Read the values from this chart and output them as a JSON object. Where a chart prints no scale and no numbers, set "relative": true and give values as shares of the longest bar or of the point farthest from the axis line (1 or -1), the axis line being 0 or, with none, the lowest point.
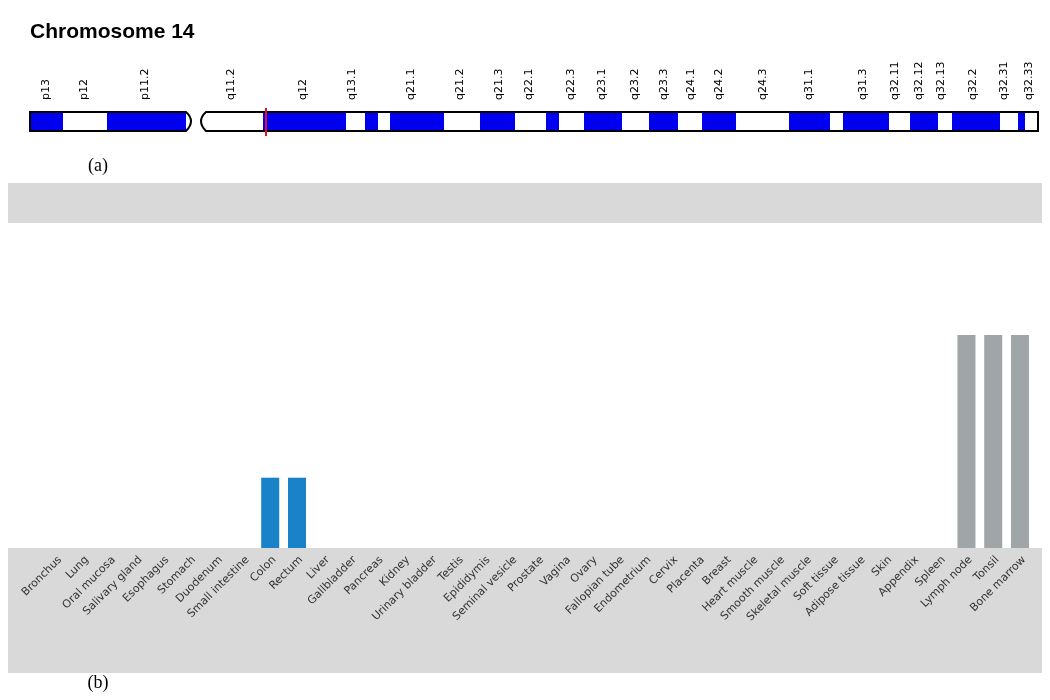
{
  "chart_data": [
    {
      "type": "other",
      "title": "Chromosome 14",
      "categories": [
        "p13",
        "p12",
        "p11.2",
        "q11.2",
        "q12",
        "q13.1",
        "q21.1",
        "q21.2",
        "q21.3",
        "q22.1",
        "q22.3",
        "q23.1",
        "q23.2",
        "q23.3",
        "q24.1",
        "q24.2",
        "q24.3",
        "q31.1",
        "q31.3",
        "q32.11",
        "q32.12",
        "q32.13",
        "q32.2",
        "q32.31",
        "q32.33"
      ],
      "annotations": [
        "(a)"
      ]
    },
    {
      "type": "bar",
      "relative": true,
      "categories": [
        "Bronchus",
        "Lung",
        "Oral mucosa",
        "Salivary gland",
        "Esophagus",
        "Stomach",
        "Duodenum",
        "Small intestine",
        "Colon",
        "Rectum",
        "Liver",
        "Gallbladder",
        "Pancreas",
        "Kidney",
        "Urinary bladder",
        "Testis",
        "Epididymis",
        "Seminal vesicle",
        "Prostate",
        "Vagina",
        "Ovary",
        "Fallopian tube",
        "Endometrium",
        "Cervix",
        "Placenta",
        "Breast",
        "Heart muscle",
        "Smooth muscle",
        "Skeletal muscle",
        "Soft tissue",
        "Adipose tissue",
        "Skin",
        "Appendix",
        "Spleen",
        "Lymph node",
        "Tonsil",
        "Bone marrow"
      ],
      "values": [
        0,
        0,
        0,
        0,
        0,
        0,
        0,
        0,
        0.33,
        0.33,
        0,
        0,
        0,
        0,
        0,
        0,
        0,
        0,
        0,
        0,
        0,
        0,
        0,
        0,
        0,
        0,
        0,
        0,
        0,
        0,
        0,
        0,
        0,
        0,
        1,
        1,
        1
      ],
      "colors": [
        "#1a82c8",
        "#1a82c8",
        "#1a82c8",
        "#1a82c8",
        "#1a82c8",
        "#1a82c8",
        "#1a82c8",
        "#1a82c8",
        "#1a82c8",
        "#1a82c8",
        "#1a82c8",
        "#1a82c8",
        "#1a82c8",
        "#1a82c8",
        "#1a82c8",
        "#1a82c8",
        "#1a82c8",
        "#1a82c8",
        "#1a82c8",
        "#1a82c8",
        "#1a82c8",
        "#1a82c8",
        "#1a82c8",
        "#1a82c8",
        "#1a82c8",
        "#1a82c8",
        "#1a82c8",
        "#1a82c8",
        "#1a82c8",
        "#1a82c8",
        "#1a82c8",
        "#1a82c8",
        "#1a82c8",
        "#1a82c8",
        "#a0a5a8",
        "#a0a5a8",
        "#a0a5a8"
      ],
      "annotations": [
        "(b)"
      ]
    }
  ]
}
